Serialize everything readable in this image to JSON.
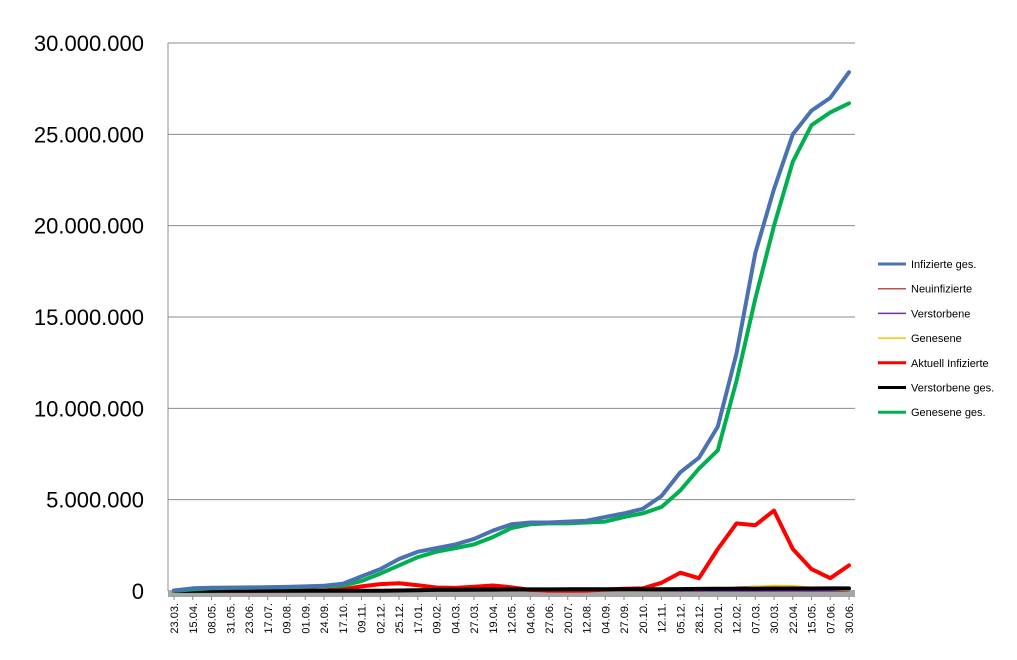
{
  "chart_data": {
    "type": "line",
    "title": "",
    "xlabel": "",
    "ylabel": "",
    "ylim": [
      0,
      30000000
    ],
    "y_ticks": [
      "0",
      "5.000.000",
      "10.000.000",
      "15.000.000",
      "20.000.000",
      "25.000.000",
      "30.000.000"
    ],
    "y_tick_values": [
      0,
      5000000,
      10000000,
      15000000,
      20000000,
      25000000,
      30000000
    ],
    "grid": "horizontal",
    "legend_position": "right",
    "categories": [
      "23.03.",
      "15.04.",
      "08.05.",
      "31.05.",
      "23.06.",
      "17.07.",
      "09.08.",
      "01.09.",
      "24.09.",
      "17.10.",
      "09.11.",
      "02.12.",
      "25.12.",
      "17.01.",
      "09.02.",
      "04.03.",
      "27.03.",
      "19.04.",
      "12.05.",
      "04.06.",
      "27.06.",
      "20.07.",
      "12.08.",
      "04.09.",
      "27.09.",
      "20.10.",
      "12.11.",
      "05.12.",
      "28.12.",
      "20.01.",
      "12.02.",
      "07.03.",
      "30.03.",
      "22.04.",
      "15.05.",
      "07.06.",
      "30.06."
    ],
    "series": [
      {
        "name": "Infizierte ges.",
        "color": "#4a72b0",
        "values": [
          30000,
          150000,
          175000,
          185000,
          195000,
          205000,
          225000,
          250000,
          290000,
          400000,
          800000,
          1200000,
          1750000,
          2150000,
          2350000,
          2550000,
          2850000,
          3300000,
          3650000,
          3750000,
          3750000,
          3800000,
          3850000,
          4050000,
          4250000,
          4500000,
          5200000,
          6500000,
          7300000,
          9000000,
          13000000,
          18500000,
          22000000,
          25000000,
          26300000,
          27000000,
          28400000
        ]
      },
      {
        "name": "Neuinfizierte",
        "color": "#c0504d",
        "values": [
          3000,
          4000,
          1000,
          500,
          500,
          800,
          1500,
          1500,
          2500,
          9000,
          20000,
          15000,
          25000,
          12000,
          8000,
          10000,
          18000,
          20000,
          9000,
          3000,
          700,
          1200,
          1500,
          8000,
          12000,
          20000,
          50000,
          60000,
          45000,
          100000,
          200000,
          250000,
          250000,
          150000,
          60000,
          20000,
          40000
        ]
      },
      {
        "name": "Verstorbene",
        "color": "#7030a0",
        "values": [
          20,
          150,
          100,
          50,
          20,
          10,
          10,
          10,
          10,
          30,
          150,
          400,
          700,
          900,
          700,
          300,
          150,
          200,
          150,
          50,
          30,
          20,
          20,
          20,
          20,
          40,
          100,
          200,
          300,
          250,
          200,
          250,
          250,
          200,
          150,
          100,
          100
        ]
      },
      {
        "name": "Genesene",
        "color": "#ffc000",
        "values": [
          1000,
          4000,
          3000,
          1000,
          500,
          500,
          1000,
          1200,
          1500,
          4000,
          12000,
          18000,
          18000,
          22000,
          15000,
          10000,
          12000,
          15000,
          15000,
          5000,
          1500,
          1000,
          1200,
          3000,
          6000,
          9000,
          25000,
          45000,
          50000,
          80000,
          150000,
          250000,
          300000,
          280000,
          200000,
          80000,
          30000
        ]
      },
      {
        "name": "Aktuell Infizierte",
        "color": "#ff0000",
        "values": [
          20000,
          70000,
          30000,
          15000,
          8000,
          9000,
          20000,
          25000,
          35000,
          100000,
          250000,
          380000,
          420000,
          320000,
          190000,
          170000,
          230000,
          300000,
          200000,
          60000,
          20000,
          15000,
          20000,
          80000,
          120000,
          150000,
          450000,
          1000000,
          700000,
          2300000,
          3700000,
          3600000,
          4400000,
          2300000,
          1200000,
          700000,
          1400000
        ]
      },
      {
        "name": "Verstorbene ges.",
        "color": "#000000",
        "values": [
          200,
          5000,
          7500,
          8500,
          9000,
          9100,
          9200,
          9300,
          9500,
          10000,
          12000,
          18000,
          30000,
          46000,
          63000,
          72000,
          76000,
          81000,
          86000,
          89000,
          90000,
          91000,
          92000,
          93000,
          94000,
          96000,
          100000,
          106000,
          115000,
          120000,
          122000,
          126000,
          131000,
          136000,
          139000,
          140000,
          141000
        ]
      },
      {
        "name": "Genesene ges.",
        "color": "#00b050",
        "values": [
          5000,
          90000,
          150000,
          170000,
          180000,
          195000,
          210000,
          230000,
          260000,
          300000,
          550000,
          950000,
          1400000,
          1850000,
          2150000,
          2350000,
          2550000,
          2950000,
          3450000,
          3650000,
          3700000,
          3700000,
          3750000,
          3800000,
          4050000,
          4250000,
          4600000,
          5500000,
          6700000,
          7700000,
          11500000,
          16000000,
          20000000,
          23500000,
          25500000,
          26200000,
          26700000
        ]
      }
    ]
  }
}
